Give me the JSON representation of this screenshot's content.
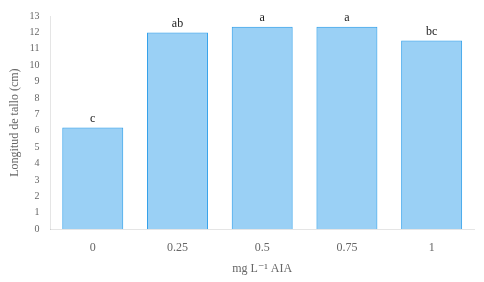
{
  "chart_data": {
    "type": "bar",
    "categories": [
      "0",
      "0.25",
      "0.5",
      "0.75",
      "1"
    ],
    "values": [
      6.2,
      12.0,
      12.35,
      12.35,
      11.5
    ],
    "annotations": [
      "c",
      "ab",
      "a",
      "a",
      "bc"
    ],
    "xlabel": "mg L⁻¹ AIA",
    "ylabel": "Longitud de tallo (cm)",
    "ylim": [
      0,
      13
    ],
    "yticks": [
      0,
      1,
      2,
      3,
      4,
      5,
      6,
      7,
      8,
      9,
      10,
      11,
      12,
      13
    ],
    "grid": false
  }
}
